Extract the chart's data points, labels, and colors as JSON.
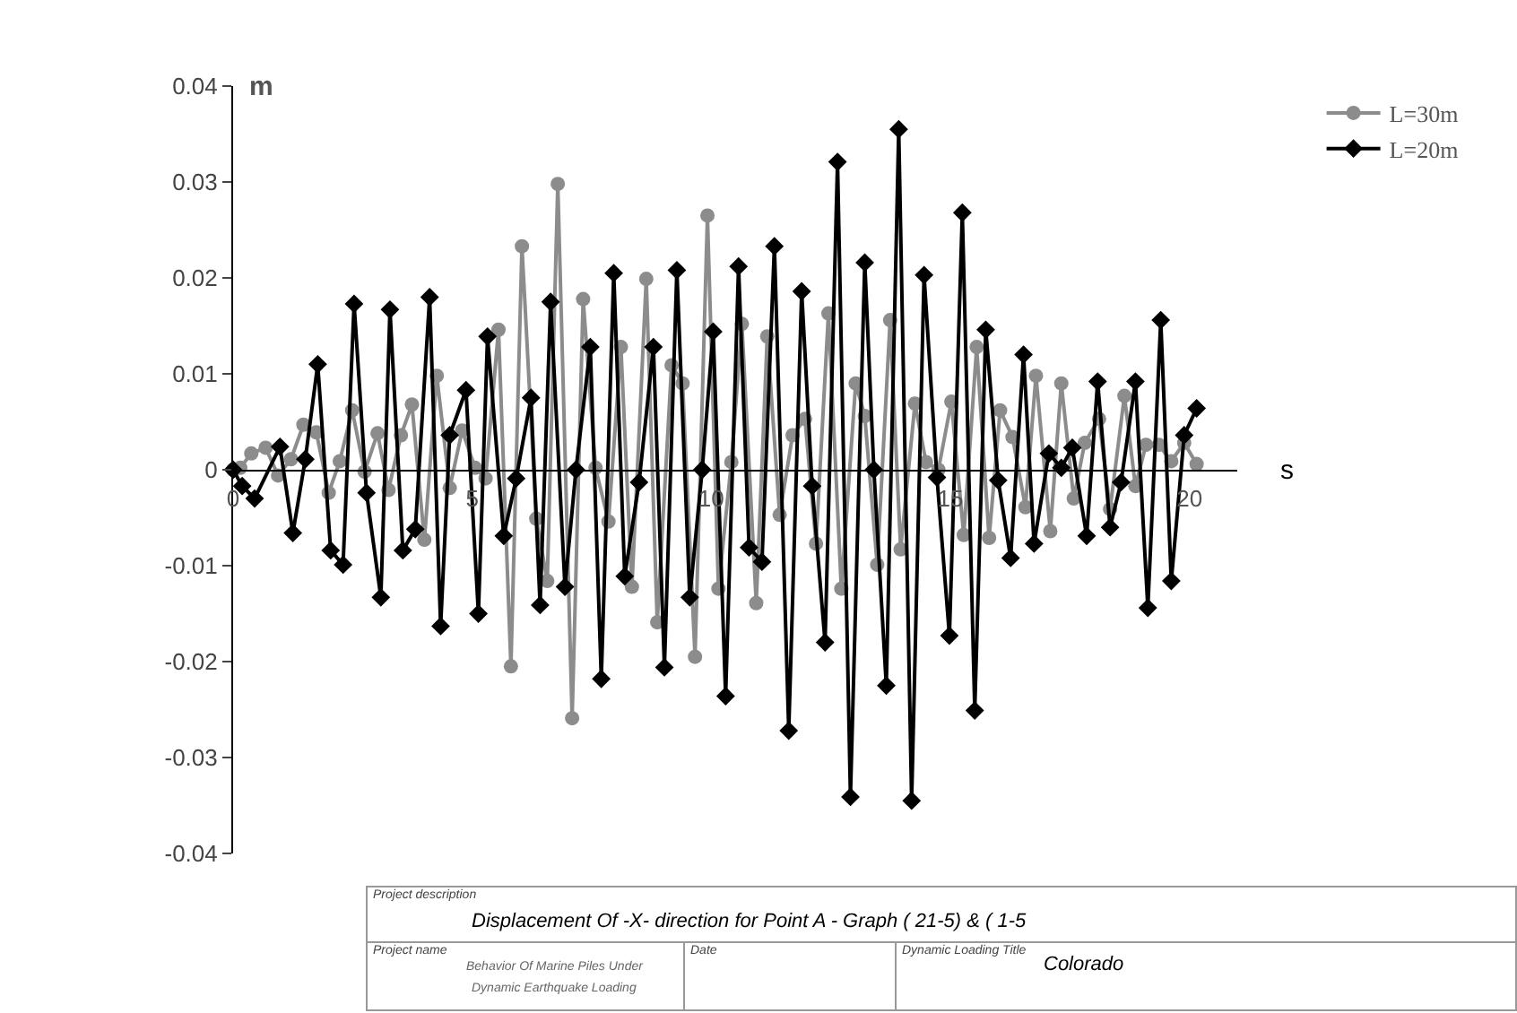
{
  "chart_data": {
    "type": "line",
    "xlabel": "s",
    "ylabel": "m",
    "xlim": [
      0,
      21
    ],
    "xticks": [
      0,
      5,
      10,
      15,
      20
    ],
    "ylim": [
      -0.04,
      0.04
    ],
    "yticks": [
      -0.04,
      -0.03,
      -0.02,
      -0.01,
      0,
      0.01,
      0.02,
      0.03,
      0.04
    ],
    "grid": false,
    "legend": "top right",
    "line_style": "solid",
    "series": [
      {
        "name": "L=30m",
        "color": "#8c8c8c",
        "marker": "circle",
        "x": [
          0,
          0.15,
          0.38,
          0.68,
          0.94,
          1.21,
          1.47,
          1.74,
          2.0,
          2.23,
          2.49,
          2.75,
          3.02,
          3.25,
          3.51,
          3.74,
          4.0,
          4.26,
          4.53,
          4.79,
          5.06,
          5.28,
          5.55,
          5.81,
          6.04,
          6.34,
          6.57,
          6.79,
          7.09,
          7.32,
          7.58,
          7.85,
          8.11,
          8.34,
          8.64,
          8.87,
          9.17,
          9.4,
          9.66,
          9.92,
          10.15,
          10.42,
          10.64,
          10.94,
          11.17,
          11.43,
          11.7,
          11.96,
          12.19,
          12.45,
          12.72,
          13.02,
          13.21,
          13.47,
          13.74,
          13.96,
          14.26,
          14.49,
          14.75,
          15.02,
          15.28,
          15.55,
          15.81,
          16.04,
          16.3,
          16.57,
          16.79,
          17.09,
          17.32,
          17.58,
          17.81,
          18.11,
          18.34,
          18.64,
          18.87,
          19.09,
          19.36,
          19.62,
          19.89,
          20.15
        ],
        "values": [
          0,
          0.0002,
          0.0017,
          0.0023,
          -0.0006,
          0.0011,
          0.0047,
          0.0039,
          -0.0024,
          0.0009,
          0.0062,
          -0.0002,
          0.0038,
          -0.0021,
          0.0036,
          0.0068,
          -0.0073,
          0.0098,
          -0.0019,
          0.0041,
          0.0002,
          -0.0009,
          0.0146,
          -0.0205,
          0.0233,
          -0.0051,
          -0.0116,
          0.0298,
          -0.0259,
          0.0178,
          0.0002,
          -0.0054,
          0.0128,
          -0.0122,
          0.0199,
          -0.0159,
          0.0109,
          0.009,
          -0.0195,
          0.0265,
          -0.0124,
          0.0008,
          0.0152,
          -0.0139,
          0.0139,
          -0.0047,
          0.0036,
          0.0053,
          -0.0077,
          0.0163,
          -0.0124,
          0.009,
          0.0056,
          -0.0099,
          0.0156,
          -0.0083,
          0.0069,
          0.0008,
          0,
          0.0071,
          -0.0068,
          0.0128,
          -0.0071,
          0.0062,
          0.0034,
          -0.0039,
          0.0098,
          -0.0064,
          0.009,
          -0.003,
          0.0028,
          0.0053,
          -0.0041,
          0.0077,
          -0.0017,
          0.0026,
          0.0026,
          0.0009,
          0.0028,
          0.0006
        ]
      },
      {
        "name": "L=20m",
        "color": "#000000",
        "marker": "diamond",
        "x": [
          0,
          0.19,
          0.45,
          0.98,
          1.25,
          1.51,
          1.77,
          2.04,
          2.3,
          2.53,
          2.79,
          3.09,
          3.28,
          3.55,
          3.81,
          4.11,
          4.34,
          4.53,
          4.87,
          5.13,
          5.32,
          5.66,
          5.92,
          6.23,
          6.42,
          6.64,
          6.94,
          7.17,
          7.47,
          7.7,
          7.96,
          8.19,
          8.49,
          8.79,
          9.02,
          9.28,
          9.55,
          9.81,
          10.04,
          10.3,
          10.57,
          10.79,
          11.06,
          11.32,
          11.62,
          11.89,
          12.11,
          12.38,
          12.64,
          12.91,
          13.21,
          13.4,
          13.66,
          13.92,
          14.19,
          14.45,
          14.72,
          14.98,
          15.25,
          15.51,
          15.74,
          16.0,
          16.26,
          16.53,
          16.75,
          17.06,
          17.32,
          17.55,
          17.85,
          18.08,
          18.34,
          18.57,
          18.87,
          19.13,
          19.4,
          19.62,
          19.89,
          20.15
        ],
        "values": [
          0,
          -0.0017,
          -0.003,
          0.0024,
          -0.0066,
          0.0011,
          0.011,
          -0.0084,
          -0.0099,
          0.0173,
          -0.0024,
          -0.0133,
          0.0167,
          -0.0084,
          -0.0062,
          0.018,
          -0.0163,
          0.0036,
          0.0083,
          -0.015,
          0.0139,
          -0.0069,
          -0.0009,
          0.0075,
          -0.0141,
          0.0175,
          -0.0122,
          0,
          0.0128,
          -0.0218,
          0.0205,
          -0.0111,
          -0.0013,
          0.0128,
          -0.0206,
          0.0208,
          -0.0133,
          0,
          0.0144,
          -0.0236,
          0.0212,
          -0.0081,
          -0.0096,
          0.0233,
          -0.0272,
          0.0186,
          -0.0017,
          -0.018,
          0.0321,
          -0.0341,
          0.0216,
          0,
          -0.0225,
          0.0355,
          -0.0345,
          0.0203,
          -0.0008,
          -0.0173,
          0.0268,
          -0.0251,
          0.0146,
          -0.0011,
          -0.0092,
          0.012,
          -0.0077,
          0.0017,
          0.0002,
          0.0023,
          -0.0069,
          0.0092,
          -0.006,
          -0.0013,
          0.0092,
          -0.0144,
          0.0156,
          -0.0116,
          0.0036,
          0.0064
        ]
      }
    ],
    "annotations": [
      "Project description",
      "Displacement Of -X- direction for Point A - Graph ( 21-5) & ( 1-5",
      "Project name",
      "Behavior Of  Marine Piles Under",
      "Dynamic Earthquake Loading",
      "Date",
      "Dynamic Loading Title",
      "Colorado"
    ]
  }
}
